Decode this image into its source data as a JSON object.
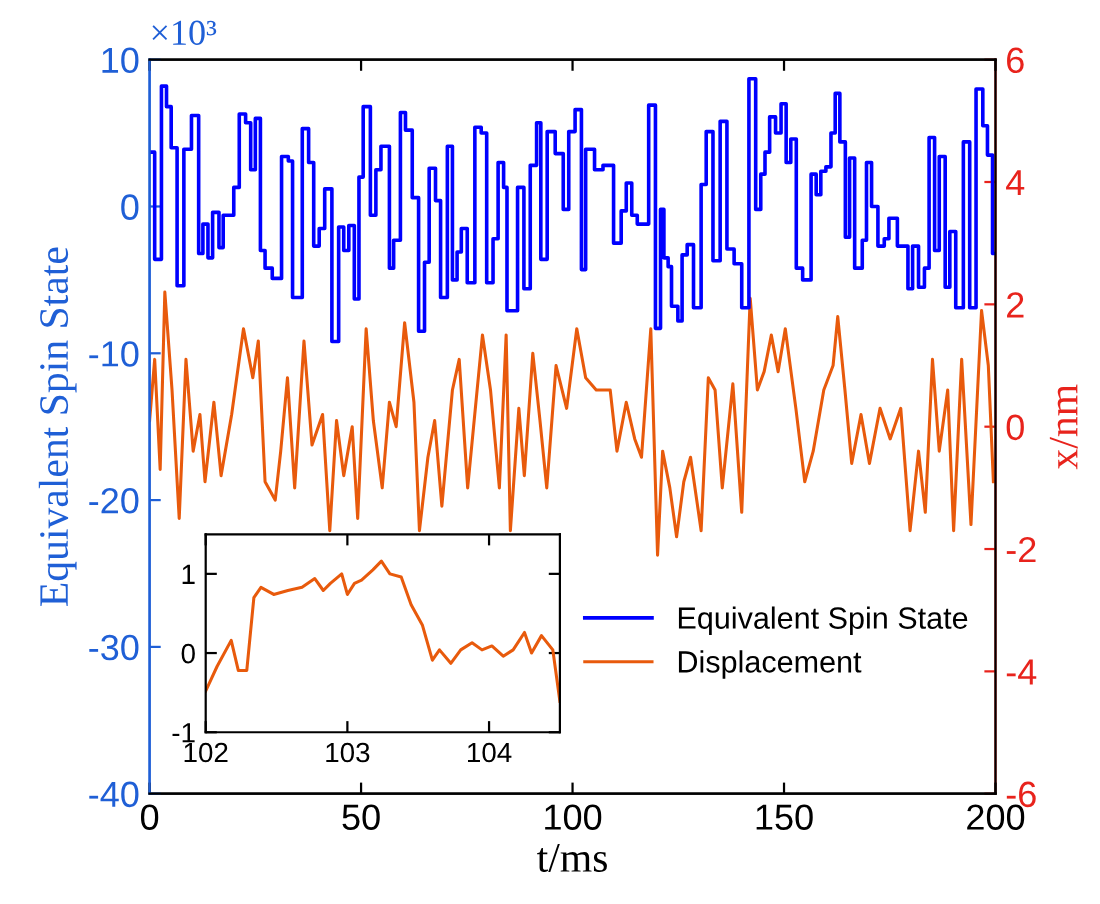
{
  "chart_data": [
    {
      "type": "line",
      "xlabel": "t/ms",
      "ylabel": "Equivalent Spin State",
      "y2label": "x/nm",
      "xlim": [
        0,
        200
      ],
      "xticks": [
        0,
        50,
        100,
        150,
        200
      ],
      "ylim": [
        -40,
        10
      ],
      "yticks": [
        -40,
        -30,
        -20,
        -10,
        0,
        10
      ],
      "y2lim": [
        -6,
        6
      ],
      "y2ticks": [
        -6,
        -4,
        -2,
        0,
        2,
        4,
        6
      ],
      "grid": false,
      "legend": "bottom right",
      "annotations": [
        "×10³"
      ],
      "series": [
        {
          "name": "Equivalent Spin State",
          "type": "step",
          "color": "#0000ff",
          "x": [
            0,
            1.2,
            2.8,
            4.0,
            5.1,
            6.5,
            8.1,
            9.9,
            11.6,
            12.6,
            13.8,
            14.9,
            16.4,
            17.4,
            19.9,
            21.2,
            22.7,
            23.9,
            25.0,
            26.2,
            27.3,
            29.0,
            31.2,
            32.8,
            33.8,
            36.1,
            37.6,
            38.8,
            40.1,
            41.4,
            43.1,
            44.7,
            45.9,
            47.1,
            48.4,
            49.5,
            50.5,
            52.2,
            53.5,
            54.7,
            56.7,
            57.7,
            59.3,
            60.5,
            62.1,
            63.6,
            65.0,
            66.1,
            67.6,
            68.8,
            70.4,
            71.6,
            72.7,
            73.7,
            75.1,
            76.9,
            78.4,
            79.7,
            81.2,
            82.4,
            83.7,
            84.5,
            87.0,
            88.5,
            90.0,
            91.5,
            92.5,
            94.0,
            95.9,
            97.8,
            99.1,
            100.6,
            102.1,
            103.1,
            105.2,
            107.2,
            109.7,
            111.5,
            112.7,
            114.0,
            115.3,
            118.0,
            119.6,
            120.8,
            121.6,
            122.6,
            123.4,
            124.9,
            125.9,
            127.1,
            128.6,
            130.4,
            131.6,
            133.2,
            134.9,
            136.5,
            138.2,
            140.0,
            141.7,
            143.3,
            144.5,
            145.5,
            146.6,
            148.0,
            149.3,
            150.5,
            151.6,
            152.9,
            154.4,
            156.4,
            157.6,
            158.7,
            159.9,
            161.1,
            162.1,
            163.2,
            164.5,
            165.5,
            166.7,
            168.5,
            169.5,
            170.7,
            172.2,
            173.7,
            174.8,
            176.8,
            179.3,
            180.4,
            181.8,
            183.2,
            184.3,
            185.6,
            186.7,
            188.1,
            189.2,
            190.6,
            192.4,
            193.9,
            195.4,
            197.0,
            198.1,
            199.3,
            200
          ],
          "values": [
            3.7,
            -3.6,
            8.2,
            6.8,
            4.0,
            -5.4,
            3.9,
            6.2,
            -3.2,
            -1.2,
            -3.5,
            -0.4,
            -2.8,
            -0.6,
            1.3,
            6.3,
            5.7,
            2.5,
            6.0,
            -3.0,
            -4.2,
            -4.9,
            3.4,
            3.1,
            -6.2,
            5.3,
            3.0,
            -2.7,
            -1.5,
            1.2,
            -9.2,
            -1.4,
            -3.0,
            -1.3,
            -6.3,
            2.0,
            6.8,
            -0.6,
            2.5,
            4.1,
            -4.2,
            -2.3,
            6.4,
            5.2,
            0.6,
            -8.5,
            -3.8,
            2.6,
            0.4,
            -6.2,
            4.1,
            -5.0,
            -3.1,
            -1.5,
            -5.2,
            5.4,
            5.0,
            -5.2,
            -2.2,
            3.0,
            1.3,
            -7.1,
            1.3,
            -5.6,
            2.8,
            5.7,
            -3.6,
            5.1,
            3.6,
            -0.2,
            5.1,
            6.6,
            -4.3,
            3.9,
            2.5,
            2.8,
            -2.5,
            -0.3,
            1.6,
            -0.6,
            -1.2,
            6.9,
            -8.3,
            -0.2,
            -3.5,
            -4.1,
            -6.8,
            -7.8,
            -3.3,
            -2.6,
            -6.9,
            1.5,
            5.1,
            -3.7,
            5.8,
            -2.9,
            -3.9,
            -6.9,
            8.7,
            -0.2,
            2.2,
            3.7,
            6.1,
            5.0,
            7.0,
            3.0,
            4.6,
            -4.2,
            -5.0,
            2.2,
            0.8,
            2.4,
            2.7,
            5.0,
            7.7,
            4.4,
            -2.1,
            3.3,
            -4.2,
            -2.3,
            3.0,
            0.0,
            -2.7,
            -2.2,
            -0.8,
            -2.7,
            -5.6,
            -2.7,
            -5.5,
            -4.2,
            4.7,
            -3.0,
            3.4,
            -5.5,
            -1.7,
            -6.9,
            4.4,
            -6.9,
            8.0,
            5.5,
            3.5,
            -3.2,
            -3.2
          ]
        },
        {
          "name": "Displacement",
          "type": "line",
          "axis": "y2",
          "color": "#e85a0c",
          "x": [
            0,
            1.2,
            2.5,
            3.6,
            5.3,
            7.0,
            8.6,
            10.3,
            11.9,
            13.1,
            15.2,
            16.9,
            19.4,
            22.2,
            24.4,
            25.7,
            27.3,
            29.7,
            31.0,
            32.6,
            34.3,
            36.5,
            38.4,
            40.9,
            42.6,
            44.2,
            45.9,
            47.9,
            49.2,
            51.2,
            52.9,
            55.0,
            56.7,
            58.3,
            60.3,
            62.5,
            63.8,
            65.8,
            67.4,
            69.1,
            71.6,
            73.2,
            75.2,
            76.6,
            78.7,
            80.6,
            82.7,
            84.3,
            85.3,
            87.3,
            88.6,
            90.6,
            92.3,
            93.9,
            96.1,
            98.6,
            101.0,
            103.1,
            105.6,
            108.9,
            110.5,
            112.7,
            114.7,
            116.3,
            118.5,
            120.1,
            121.3,
            123.0,
            124.6,
            126.3,
            127.9,
            130.4,
            132.1,
            133.7,
            135.4,
            137.9,
            140.0,
            142.0,
            143.7,
            145.3,
            147.0,
            148.6,
            150.3,
            152.8,
            154.9,
            156.9,
            159.4,
            161.6,
            162.7,
            164.4,
            166.0,
            168.2,
            170.2,
            172.7,
            175.1,
            177.6,
            179.8,
            181.8,
            183.4,
            185.1,
            186.7,
            188.7,
            190.1,
            192.0,
            194.2,
            196.7,
            198.3,
            199.5
          ],
          "values": [
            0.1,
            1.1,
            -0.7,
            2.2,
            0.6,
            -1.5,
            1.1,
            -0.4,
            0.2,
            -0.9,
            0.4,
            -0.8,
            0.2,
            1.6,
            0.8,
            1.4,
            -0.9,
            -1.2,
            -0.4,
            0.8,
            -1.0,
            1.4,
            -0.3,
            0.2,
            -1.7,
            0.1,
            -0.8,
            0.0,
            -1.5,
            1.6,
            0.1,
            -1.0,
            0.4,
            0.0,
            1.7,
            0.4,
            -1.7,
            -0.5,
            0.1,
            -1.3,
            0.6,
            1.1,
            -1.0,
            0.0,
            1.5,
            0.6,
            -1.0,
            1.5,
            -1.7,
            0.3,
            -0.8,
            1.2,
            0.1,
            -1.0,
            1.0,
            0.3,
            1.6,
            0.8,
            0.6,
            0.6,
            -0.4,
            0.4,
            -0.2,
            -0.5,
            1.6,
            -2.1,
            -0.4,
            -1.0,
            -1.8,
            -0.9,
            -0.5,
            -1.7,
            0.8,
            0.6,
            -1.0,
            0.7,
            -1.4,
            2.1,
            0.6,
            0.9,
            1.5,
            0.9,
            1.6,
            0.3,
            -0.9,
            -0.4,
            0.6,
            1.0,
            1.8,
            0.6,
            -0.6,
            0.2,
            -0.6,
            0.3,
            -0.2,
            0.3,
            -1.7,
            -0.4,
            -1.4,
            1.1,
            -0.4,
            0.6,
            -1.7,
            1.1,
            -1.6,
            1.9,
            1.0,
            -0.9
          ]
        }
      ]
    },
    {
      "type": "line",
      "xlim": [
        102,
        104.5
      ],
      "xticks": [
        102,
        103,
        104
      ],
      "ylim": [
        -1,
        1.5
      ],
      "yticks": [
        -1,
        0,
        1
      ],
      "grid": false,
      "series": [
        {
          "color": "#e85a0c",
          "x": [
            102.0,
            102.08,
            102.18,
            102.23,
            102.29,
            102.34,
            102.39,
            102.48,
            102.58,
            102.68,
            102.77,
            102.83,
            102.88,
            102.96,
            103.0,
            103.05,
            103.1,
            103.18,
            103.24,
            103.3,
            103.38,
            103.45,
            103.53,
            103.6,
            103.65,
            103.73,
            103.8,
            103.88,
            103.95,
            104.02,
            104.1,
            104.17,
            104.25,
            104.3,
            104.37,
            104.45,
            104.5
          ],
          "values": [
            -0.48,
            -0.17,
            0.16,
            -0.22,
            -0.22,
            0.7,
            0.83,
            0.74,
            0.79,
            0.83,
            0.94,
            0.79,
            0.88,
            1.0,
            0.74,
            0.88,
            0.92,
            1.05,
            1.16,
            1.0,
            0.96,
            0.61,
            0.35,
            -0.09,
            0.04,
            -0.13,
            0.04,
            0.13,
            0.04,
            0.09,
            -0.04,
            0.04,
            0.26,
            0.0,
            0.22,
            0.04,
            -0.61
          ]
        }
      ]
    }
  ]
}
